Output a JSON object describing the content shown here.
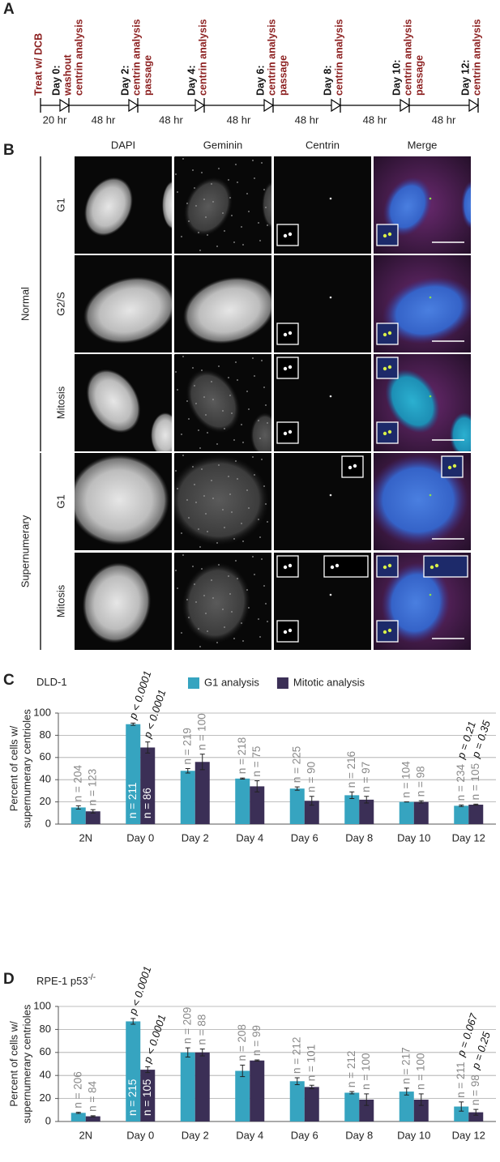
{
  "panel_a": {
    "label": "A",
    "events": [
      {
        "notes": [
          "Treat w/ DCB"
        ]
      },
      {
        "day": "Day 0:",
        "notes": [
          "washout",
          "centrin analysis"
        ]
      },
      {
        "day": "Day 2:",
        "notes": [
          "centrin analysis",
          "passage"
        ]
      },
      {
        "day": "Day 4:",
        "notes": [
          "centrin analysis"
        ]
      },
      {
        "day": "Day 6:",
        "notes": [
          "centrin analysis",
          "passage"
        ]
      },
      {
        "day": "Day 8:",
        "notes": [
          "centrin analysis"
        ]
      },
      {
        "day": "Day 10:",
        "notes": [
          "centrin analysis",
          "passage"
        ]
      },
      {
        "day": "Day 12:",
        "notes": [
          "centrin analysis"
        ]
      }
    ],
    "intervals": [
      "20 hr",
      "48 hr",
      "48 hr",
      "48 hr",
      "48 hr",
      "48 hr",
      "48 hr"
    ]
  },
  "panel_b": {
    "label": "B",
    "columns": [
      "DAPI",
      "Geminin",
      "Centrin",
      "Merge"
    ],
    "groups": [
      {
        "name": "Normal",
        "rows": [
          "G1",
          "G2/S",
          "Mitosis"
        ]
      },
      {
        "name": "Supernumerary",
        "rows": [
          "G1",
          "Mitosis"
        ]
      }
    ]
  },
  "chart_data": [
    {
      "type": "bar",
      "label": "C",
      "title": "DLD-1",
      "ylabel": [
        "Percent of cells w/",
        "supernumerary centrioles"
      ],
      "categories": [
        "2N",
        "Day 0",
        "Day 2",
        "Day 4",
        "Day 6",
        "Day 8",
        "Day 10",
        "Day 12"
      ],
      "series": [
        {
          "name": "G1 analysis",
          "color": "#36a4c0",
          "values": [
            15,
            90,
            48,
            41,
            32,
            26,
            20,
            16.5
          ],
          "errors": [
            1.5,
            1,
            2,
            0.5,
            1.5,
            3,
            0,
            0.7
          ],
          "n_labels": [
            "n = 204",
            "n = 211",
            "n = 219",
            "n = 218",
            "n = 225",
            "n = 216",
            "n = 104",
            "n = 234"
          ],
          "p_labels": [
            null,
            "p < 0.0001",
            null,
            null,
            null,
            null,
            null,
            "p = 0.21"
          ]
        },
        {
          "name": "Mitotic analysis",
          "color": "#3b2f56",
          "values": [
            11.5,
            69,
            56,
            34,
            21,
            22,
            20,
            17.5
          ],
          "errors": [
            1.5,
            5,
            7,
            5,
            4,
            3,
            1,
            0.5
          ],
          "n_labels": [
            "n = 123",
            "n = 86",
            "n = 100",
            "n = 75",
            "n = 90",
            "n = 97",
            "n = 98",
            "n = 105"
          ],
          "p_labels": [
            null,
            "p < 0.0001",
            null,
            null,
            null,
            null,
            null,
            "p = 0.35"
          ]
        }
      ],
      "ylim": [
        0,
        100
      ],
      "yticks": [
        0,
        20,
        40,
        60,
        80,
        100
      ],
      "grid": true,
      "legend": "top"
    },
    {
      "type": "bar",
      "label": "D",
      "title": "RPE-1 p53",
      "title_superscript": "-/-",
      "ylabel": [
        "Percent of cells w/",
        "supernumerary centrioles"
      ],
      "categories": [
        "2N",
        "Day 0",
        "Day 2",
        "Day 4",
        "Day 6",
        "Day 8",
        "Day 10",
        "Day 12"
      ],
      "series": [
        {
          "color": "#36a4c0",
          "values": [
            7.5,
            87,
            60,
            44,
            35,
            25,
            26,
            13
          ],
          "errors": [
            0.5,
            2.5,
            4,
            5,
            3,
            1,
            3,
            4
          ],
          "n_labels": [
            "n = 206",
            "n = 215",
            "n = 209",
            "n = 208",
            "n = 212",
            "n = 212",
            "n = 217",
            "n = 211"
          ],
          "p_labels": [
            null,
            "p < 0.0001",
            null,
            null,
            null,
            null,
            null,
            "p = 0.067"
          ]
        },
        {
          "color": "#3b2f56",
          "values": [
            4.5,
            45,
            60,
            53,
            30,
            19,
            19,
            8
          ],
          "errors": [
            0.5,
            2.5,
            3,
            0.5,
            1.5,
            5,
            5,
            2.5
          ],
          "n_labels": [
            "n = 84",
            "n = 105",
            "n = 88",
            "n = 99",
            "n = 101",
            "n = 100",
            "n = 100",
            "n = 98"
          ],
          "p_labels": [
            null,
            "p < 0.0001",
            null,
            null,
            null,
            null,
            null,
            "p = 0.25"
          ]
        }
      ],
      "ylim": [
        0,
        100
      ],
      "yticks": [
        0,
        20,
        40,
        60,
        80,
        100
      ],
      "grid": true
    }
  ]
}
